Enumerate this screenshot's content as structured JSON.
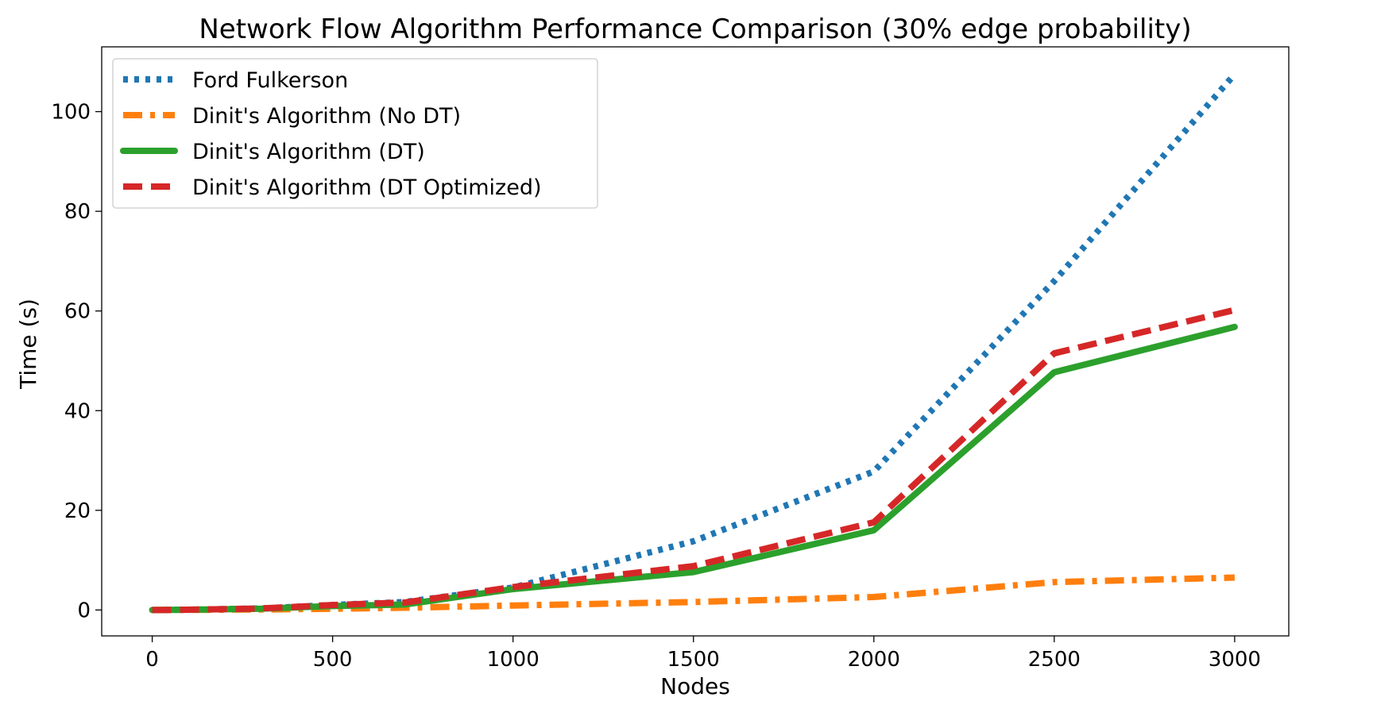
{
  "chart_data": {
    "type": "line",
    "title": "Network Flow Algorithm Performance Comparison (30% edge probability)",
    "xlabel": "Nodes",
    "ylabel": "Time (s)",
    "xlim": [
      -140,
      3150
    ],
    "ylim": [
      -5.2,
      113
    ],
    "xticks": [
      0,
      500,
      1000,
      1500,
      2000,
      2500,
      3000
    ],
    "yticks": [
      0,
      20,
      40,
      60,
      80,
      100
    ],
    "grid": false,
    "legend_position": "top-left",
    "x": [
      0,
      100,
      300,
      500,
      700,
      1000,
      1500,
      2000,
      2500,
      3000
    ],
    "series": [
      {
        "name": "Ford Fulkerson",
        "color": "#1f77b4",
        "style": "dotted",
        "values": [
          0.0,
          0.05,
          0.3,
          1.0,
          1.6,
          4.5,
          13.8,
          27.8,
          66.0,
          107.5
        ]
      },
      {
        "name": "Dinit's Algorithm (No DT)",
        "color": "#ff7f0e",
        "style": "dashdot",
        "values": [
          0.0,
          0.02,
          0.1,
          0.25,
          0.45,
          0.9,
          1.6,
          2.6,
          5.6,
          6.5
        ]
      },
      {
        "name": "Dinit's Algorithm (DT)",
        "color": "#2ca02c",
        "style": "solid",
        "values": [
          0.0,
          0.05,
          0.25,
          0.8,
          1.1,
          4.2,
          7.6,
          16.0,
          47.7,
          56.8
        ]
      },
      {
        "name": "Dinit's Algorithm (DT Optimized)",
        "color": "#d62728",
        "style": "dashed",
        "values": [
          0.0,
          0.05,
          0.3,
          1.0,
          1.5,
          4.6,
          8.8,
          17.6,
          51.5,
          60.2
        ]
      }
    ]
  }
}
